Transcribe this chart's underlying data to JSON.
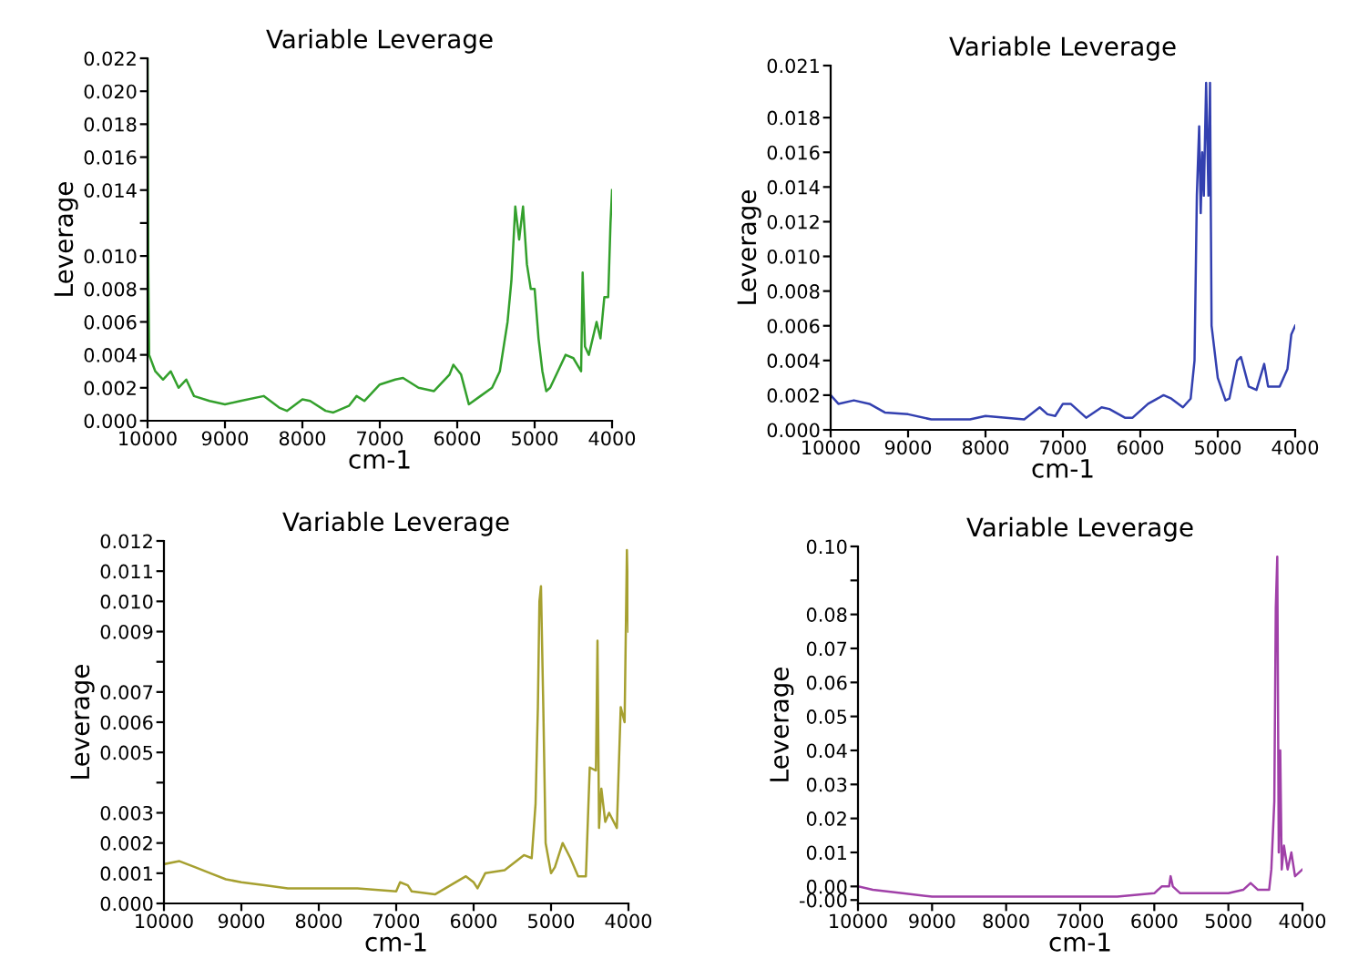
{
  "chart_data": [
    {
      "type": "line",
      "title": "Variable Leverage",
      "xlabel": "cm-1",
      "ylabel": "Leverage",
      "xlim": [
        10000,
        4000
      ],
      "xticks": [
        10000,
        9000,
        8000,
        7000,
        6000,
        5000,
        4000
      ],
      "ylim": [
        0,
        0.022
      ],
      "yticks": [
        {
          "value": 0,
          "label": "0.000"
        },
        {
          "value": 0.002,
          "label": "0.002"
        },
        {
          "value": 0.004,
          "label": "0.004"
        },
        {
          "value": 0.006,
          "label": "0.006"
        },
        {
          "value": 0.008,
          "label": "0.008"
        },
        {
          "value": 0.01,
          "label": "0.010"
        },
        {
          "value": 0.012,
          "label": null
        },
        {
          "value": 0.014,
          "label": "0.014"
        },
        {
          "value": 0.016,
          "label": "0.016"
        },
        {
          "value": 0.018,
          "label": "0.018"
        },
        {
          "value": 0.02,
          "label": "0.020"
        },
        {
          "value": 0.022,
          "label": "0.022"
        }
      ],
      "grid": false,
      "legend": false,
      "series": [
        {
          "color": "#33a02c",
          "x": [
            10000,
            9990,
            9980,
            9900,
            9800,
            9700,
            9600,
            9500,
            9400,
            9200,
            9000,
            8800,
            8500,
            8300,
            8200,
            8000,
            7900,
            7700,
            7600,
            7400,
            7300,
            7200,
            7000,
            6800,
            6700,
            6500,
            6300,
            6100,
            6050,
            5950,
            5850,
            5700,
            5550,
            5450,
            5350,
            5300,
            5250,
            5200,
            5150,
            5100,
            5050,
            5000,
            4950,
            4900,
            4850,
            4800,
            4700,
            4600,
            4500,
            4400,
            4380,
            4350,
            4300,
            4200,
            4150,
            4100,
            4050,
            4020,
            4000
          ],
          "values": [
            0.022,
            0.009,
            0.004,
            0.003,
            0.0025,
            0.003,
            0.002,
            0.0025,
            0.0015,
            0.0012,
            0.001,
            0.0012,
            0.0015,
            0.0008,
            0.0006,
            0.0013,
            0.0012,
            0.0006,
            0.0005,
            0.0009,
            0.0015,
            0.0012,
            0.0022,
            0.0025,
            0.0026,
            0.002,
            0.0018,
            0.0028,
            0.0034,
            0.0028,
            0.001,
            0.0015,
            0.002,
            0.003,
            0.006,
            0.0085,
            0.013,
            0.011,
            0.013,
            0.0095,
            0.008,
            0.008,
            0.005,
            0.003,
            0.0018,
            0.002,
            0.003,
            0.004,
            0.0038,
            0.003,
            0.009,
            0.0045,
            0.004,
            0.006,
            0.005,
            0.0075,
            0.0075,
            0.012,
            0.014
          ]
        }
      ]
    },
    {
      "type": "line",
      "title": "Variable Leverage",
      "xlabel": "cm-1",
      "ylabel": "Leverage",
      "xlim": [
        10000,
        4000
      ],
      "xticks": [
        10000,
        9000,
        8000,
        7000,
        6000,
        5000,
        4000
      ],
      "ylim": [
        0,
        0.021
      ],
      "yticks": [
        {
          "value": 0,
          "label": "0.000"
        },
        {
          "value": 0.002,
          "label": "0.002"
        },
        {
          "value": 0.004,
          "label": "0.004"
        },
        {
          "value": 0.006,
          "label": "0.006"
        },
        {
          "value": 0.008,
          "label": "0.008"
        },
        {
          "value": 0.01,
          "label": "0.010"
        },
        {
          "value": 0.012,
          "label": "0.012"
        },
        {
          "value": 0.014,
          "label": "0.014"
        },
        {
          "value": 0.016,
          "label": "0.016"
        },
        {
          "value": 0.018,
          "label": "0.018"
        },
        {
          "value": 0.021,
          "label": "0.021"
        }
      ],
      "grid": false,
      "legend": false,
      "series": [
        {
          "color": "#3340b0",
          "x": [
            10000,
            9900,
            9700,
            9500,
            9300,
            9000,
            8700,
            8200,
            8000,
            7500,
            7300,
            7200,
            7100,
            7000,
            6900,
            6700,
            6500,
            6400,
            6200,
            6100,
            5900,
            5700,
            5600,
            5450,
            5350,
            5300,
            5270,
            5240,
            5220,
            5200,
            5180,
            5150,
            5120,
            5100,
            5080,
            5000,
            4900,
            4850,
            4750,
            4700,
            4600,
            4500,
            4400,
            4350,
            4200,
            4100,
            4050,
            4000
          ],
          "values": [
            0.002,
            0.0015,
            0.0017,
            0.0015,
            0.001,
            0.0009,
            0.0006,
            0.0006,
            0.0008,
            0.0006,
            0.0013,
            0.0009,
            0.0008,
            0.0015,
            0.0015,
            0.0007,
            0.0013,
            0.0012,
            0.0007,
            0.0007,
            0.0015,
            0.002,
            0.0018,
            0.0013,
            0.0018,
            0.004,
            0.0135,
            0.0175,
            0.0125,
            0.016,
            0.0135,
            0.02,
            0.0135,
            0.02,
            0.006,
            0.003,
            0.0017,
            0.0018,
            0.004,
            0.0042,
            0.0025,
            0.0023,
            0.0038,
            0.0025,
            0.0025,
            0.0035,
            0.0055,
            0.006
          ]
        }
      ]
    },
    {
      "type": "line",
      "title": "Variable Leverage",
      "xlabel": "cm-1",
      "ylabel": "Leverage",
      "xlim": [
        10000,
        4000
      ],
      "xticks": [
        10000,
        9000,
        8000,
        7000,
        6000,
        5000,
        4000
      ],
      "ylim": [
        0,
        0.012
      ],
      "yticks": [
        {
          "value": 0,
          "label": "0.000"
        },
        {
          "value": 0.001,
          "label": "0.001"
        },
        {
          "value": 0.002,
          "label": "0.002"
        },
        {
          "value": 0.003,
          "label": "0.003"
        },
        {
          "value": 0.004,
          "label": null
        },
        {
          "value": 0.005,
          "label": "0.005"
        },
        {
          "value": 0.006,
          "label": "0.006"
        },
        {
          "value": 0.007,
          "label": "0.007"
        },
        {
          "value": 0.008,
          "label": null
        },
        {
          "value": 0.009,
          "label": "0.009"
        },
        {
          "value": 0.01,
          "label": "0.010"
        },
        {
          "value": 0.011,
          "label": "0.011"
        },
        {
          "value": 0.012,
          "label": "0.012"
        }
      ],
      "grid": false,
      "legend": false,
      "series": [
        {
          "color": "#a6a030",
          "x": [
            10000,
            9800,
            9600,
            9400,
            9200,
            9000,
            8700,
            8400,
            8000,
            7500,
            7000,
            6950,
            6850,
            6800,
            6500,
            6300,
            6100,
            6000,
            5950,
            5850,
            5600,
            5350,
            5250,
            5200,
            5170,
            5150,
            5130,
            5100,
            5070,
            5000,
            4950,
            4850,
            4750,
            4650,
            4550,
            4500,
            4420,
            4400,
            4380,
            4350,
            4300,
            4250,
            4150,
            4100,
            4050,
            4020,
            4000
          ],
          "values": [
            0.0013,
            0.0014,
            0.0012,
            0.001,
            0.0008,
            0.0007,
            0.0006,
            0.0005,
            0.0005,
            0.0005,
            0.0004,
            0.0007,
            0.0006,
            0.0004,
            0.0003,
            0.0006,
            0.0009,
            0.0007,
            0.0005,
            0.001,
            0.0011,
            0.0016,
            0.0015,
            0.0033,
            0.0065,
            0.01,
            0.0105,
            0.0065,
            0.002,
            0.001,
            0.0012,
            0.002,
            0.0015,
            0.0009,
            0.0009,
            0.0045,
            0.0044,
            0.0087,
            0.0025,
            0.0038,
            0.0027,
            0.003,
            0.0025,
            0.0065,
            0.006,
            0.0117,
            0.009
          ]
        }
      ]
    },
    {
      "type": "line",
      "title": "Variable Leverage",
      "xlabel": "cm-1",
      "ylabel": "Leverage",
      "xlim": [
        10000,
        4000
      ],
      "xticks": [
        10000,
        9000,
        8000,
        7000,
        6000,
        5000,
        4000
      ],
      "ylim": [
        -0.005,
        0.1
      ],
      "yticks": [
        {
          "value": -0.004,
          "label": "-0.00"
        },
        {
          "value": 0.0,
          "label": "0.00"
        },
        {
          "value": 0.01,
          "label": "0.01"
        },
        {
          "value": 0.02,
          "label": "0.02"
        },
        {
          "value": 0.03,
          "label": "0.03"
        },
        {
          "value": 0.04,
          "label": "0.04"
        },
        {
          "value": 0.05,
          "label": "0.05"
        },
        {
          "value": 0.06,
          "label": "0.06"
        },
        {
          "value": 0.07,
          "label": "0.07"
        },
        {
          "value": 0.08,
          "label": "0.08"
        },
        {
          "value": 0.09,
          "label": null
        },
        {
          "value": 0.1,
          "label": "0.10"
        }
      ],
      "grid": false,
      "legend": false,
      "series": [
        {
          "color": "#a040a8",
          "x": [
            10000,
            9800,
            9400,
            9000,
            8000,
            7000,
            6500,
            6000,
            5900,
            5800,
            5780,
            5750,
            5650,
            5000,
            4800,
            4700,
            4600,
            4450,
            4420,
            4400,
            4380,
            4360,
            4340,
            4320,
            4300,
            4280,
            4250,
            4200,
            4150,
            4100,
            4050,
            4000
          ],
          "values": [
            0.0,
            -0.001,
            -0.002,
            -0.003,
            -0.003,
            -0.003,
            -0.003,
            -0.002,
            0.0,
            0.0,
            0.003,
            0.0,
            -0.002,
            -0.002,
            -0.001,
            0.001,
            -0.001,
            -0.001,
            0.005,
            0.015,
            0.025,
            0.082,
            0.097,
            0.01,
            0.04,
            0.005,
            0.012,
            0.005,
            0.01,
            0.003,
            0.004,
            0.005
          ]
        }
      ]
    }
  ]
}
